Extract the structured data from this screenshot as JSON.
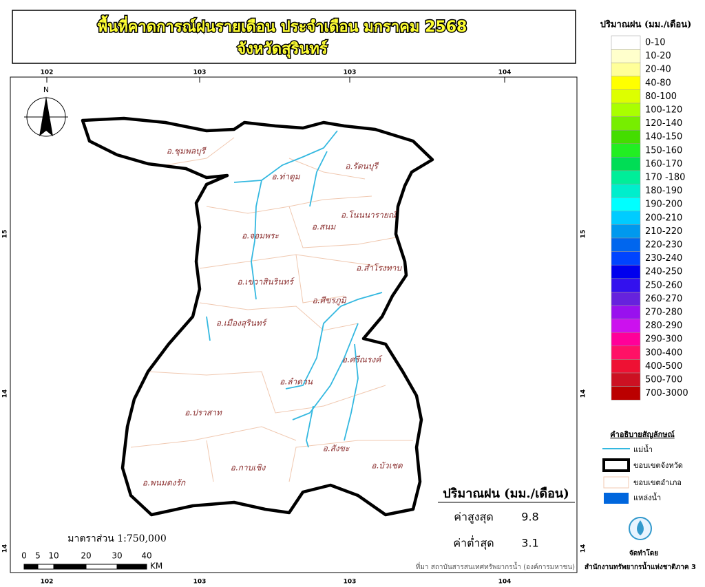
{
  "title": {
    "line1": "พื้นที่คาดการณ์ฝนรายเดือน ประจำเดือน มกราคม 2568",
    "line2": "จังหวัดสุรินทร์"
  },
  "grid_labels": {
    "top": [
      "102",
      "103",
      "103",
      "104"
    ],
    "bottom": [
      "102",
      "103",
      "103",
      "104"
    ],
    "left": [
      "15",
      "14",
      "14"
    ],
    "right": [
      "15",
      "14",
      "14"
    ]
  },
  "north": "N",
  "districts": [
    "อ.ชุมพลบุรี",
    "อ.ท่าตูม",
    "อ.รัตนบุรี",
    "อ.โนนนารายณ์",
    "อ.สนม",
    "อ.จอมพระ",
    "อ.สำโรงทาบ",
    "อ.เขวาสินรินทร์",
    "อ.ศีขรภูมิ",
    "อ.เมืองสุรินทร์",
    "อ.ศรีณรงค์",
    "อ.ลำดวน",
    "อ.ปราสาท",
    "อ.สังขะ",
    "อ.บัวเชด",
    "อ.กาบเชิง",
    "อ.พนมดงรัก"
  ],
  "scale": {
    "text": "มาตราส่วน 1:750,000",
    "ticks": [
      "0",
      "5",
      "10",
      "20",
      "30",
      "40"
    ],
    "unit": "KM"
  },
  "stats": {
    "title": "ปริมาณฝน (มม./เดือน)",
    "max_label": "ค่าสูงสุด",
    "max_value": 9.8,
    "min_label": "ค่าต่ำสุด",
    "min_value": 3.1
  },
  "source": "ที่มา  สถาบันสารสนเทศทรัพยากรน้ำ (องค์การมหาชน)",
  "rain_legend": {
    "title": "ปริมาณฝน (มม./เดือน)",
    "classes": [
      {
        "label": "0-10",
        "color": "#ffffff"
      },
      {
        "label": "10-20",
        "color": "#ffffcc"
      },
      {
        "label": "20-40",
        "color": "#ffff99"
      },
      {
        "label": "40-80",
        "color": "#ffff00"
      },
      {
        "label": "80-100",
        "color": "#ddff00"
      },
      {
        "label": "100-120",
        "color": "#aaff00"
      },
      {
        "label": "120-140",
        "color": "#77ee00"
      },
      {
        "label": "140-150",
        "color": "#44dd00"
      },
      {
        "label": "150-160",
        "color": "#22ee22"
      },
      {
        "label": "160-170",
        "color": "#00dd55"
      },
      {
        "label": "170 -180",
        "color": "#00ee99"
      },
      {
        "label": "180-190",
        "color": "#00eecc"
      },
      {
        "label": "190-200",
        "color": "#00ffff"
      },
      {
        "label": "200-210",
        "color": "#00ccff"
      },
      {
        "label": "210-220",
        "color": "#0099ee"
      },
      {
        "label": "220-230",
        "color": "#0066ee"
      },
      {
        "label": "230-240",
        "color": "#0044ff"
      },
      {
        "label": "240-250",
        "color": "#0000ee"
      },
      {
        "label": "250-260",
        "color": "#3311ee"
      },
      {
        "label": "260-270",
        "color": "#6622dd"
      },
      {
        "label": "270-280",
        "color": "#9911ee"
      },
      {
        "label": "280-290",
        "color": "#cc11ee"
      },
      {
        "label": "290-300",
        "color": "#ff0099"
      },
      {
        "label": "300-400",
        "color": "#ff1166"
      },
      {
        "label": "400-500",
        "color": "#ee1133"
      },
      {
        "label": "500-700",
        "color": "#cc1122"
      },
      {
        "label": "700-3000",
        "color": "#bb0000"
      }
    ]
  },
  "symbol_legend": {
    "title": "คำอธิบายสัญลักษณ์",
    "items": [
      "แม่น้ำ",
      "ขอบเขตจังหวัด",
      "ขอบเขตอำเภอ",
      "แหล่งน้ำ"
    ]
  },
  "credit": {
    "label": "จัดทำโดย",
    "org": "สำนักงานทรัพยากรน้ำแห่งชาติภาค 3"
  }
}
